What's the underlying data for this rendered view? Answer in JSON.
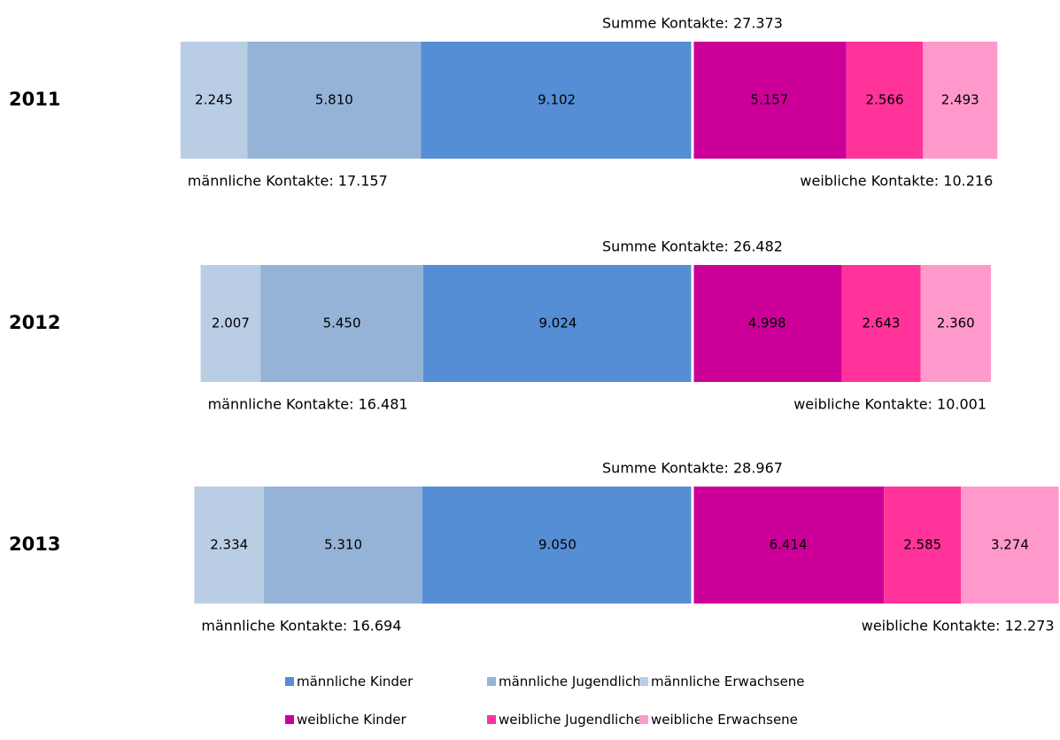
{
  "chart_data": {
    "type": "bar",
    "orientation": "horizontal-stacked",
    "categories": [
      "2011",
      "2012",
      "2013"
    ],
    "series": [
      {
        "name": "männliche Erwachsene",
        "color": "#b9cde5",
        "values": [
          2245,
          2007,
          2334
        ],
        "labels": [
          "2.245",
          "2.007",
          "2.334"
        ]
      },
      {
        "name": "männliche Jugendliche",
        "color": "#95b3d7",
        "values": [
          5810,
          5450,
          5310
        ],
        "labels": [
          "5.810",
          "5.450",
          "5.310"
        ]
      },
      {
        "name": "männliche Kinder",
        "color": "#558ed5",
        "values": [
          9102,
          9024,
          9050
        ],
        "labels": [
          "9.102",
          "9.024",
          "9.050"
        ]
      },
      {
        "name": "weibliche Kinder",
        "color": "#cc0099",
        "values": [
          5157,
          4998,
          6414
        ],
        "labels": [
          "5.157",
          "4.998",
          "6.414"
        ]
      },
      {
        "name": "weibliche Jugendliche",
        "color": "#ff3399",
        "values": [
          2566,
          2643,
          2585
        ],
        "labels": [
          "2.566",
          "2.643",
          "2.585"
        ]
      },
      {
        "name": "weibliche Erwachsene",
        "color": "#ff99cc",
        "values": [
          2493,
          2360,
          3274
        ],
        "labels": [
          "2.493",
          "2.360",
          "3.274"
        ]
      }
    ],
    "totals": [
      "Summe Kontakte: 27.373",
      "Summe Kontakte: 26.482",
      "Summe Kontakte: 28.967"
    ],
    "male_totals": [
      "männliche Kontakte: 17.157",
      "männliche Kontakte: 16.481",
      "männliche Kontakte: 16.694"
    ],
    "female_totals": [
      "weibliche Kontakte: 10.216",
      "weibliche Kontakte: 10.001",
      "weibliche Kontakte: 12.273"
    ],
    "legend": [
      {
        "label": "männliche Kinder",
        "color": "#558ed5"
      },
      {
        "label": "männliche Jugendliche",
        "color": "#95b3d7"
      },
      {
        "label": "männliche Erwachsene",
        "color": "#b9cde5"
      },
      {
        "label": "weibliche Kinder",
        "color": "#cc0099"
      },
      {
        "label": "weibliche Jugendliche",
        "color": "#ff3399"
      },
      {
        "label": "weibliche Erwachsene",
        "color": "#ff99cc"
      }
    ]
  }
}
